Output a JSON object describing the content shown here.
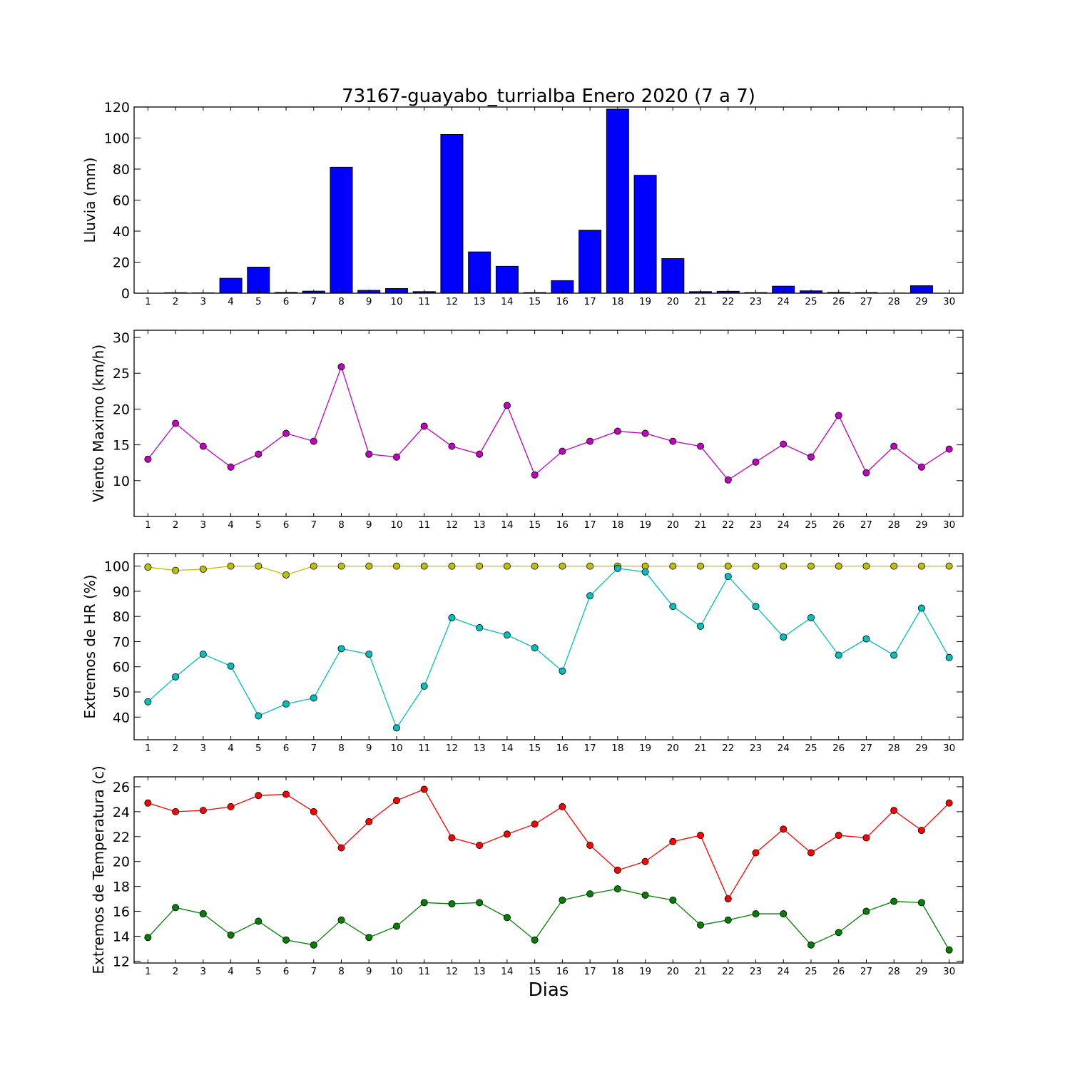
{
  "figure": {
    "title": "73167-guayabo_turrialba Enero 2020  (7 a 7)",
    "xlabel": "Dias"
  },
  "chart_data": [
    {
      "type": "bar",
      "ylabel": "Lluvia (mm)",
      "x": [
        1,
        2,
        3,
        4,
        5,
        6,
        7,
        8,
        9,
        10,
        11,
        12,
        13,
        14,
        15,
        16,
        17,
        18,
        19,
        20,
        21,
        22,
        23,
        24,
        25,
        26,
        27,
        28,
        29,
        30
      ],
      "xlim": [
        0.5,
        30.5
      ],
      "ylim": [
        0,
        120
      ],
      "yticks": [
        0,
        20,
        40,
        60,
        80,
        100,
        120
      ],
      "series": [
        {
          "color": "#0000ff",
          "values": [
            0,
            0.3,
            0.2,
            9.6,
            16.8,
            0.5,
            1.3,
            81.2,
            1.8,
            3.0,
            1.0,
            102.3,
            26.6,
            17.3,
            0.4,
            8.1,
            40.6,
            118.6,
            76.0,
            22.3,
            1.0,
            1.2,
            0.4,
            4.5,
            1.5,
            0.5,
            0.4,
            0.1,
            4.8,
            0
          ]
        }
      ]
    },
    {
      "type": "line",
      "ylabel": "Viento Maximo (km/h)",
      "x": [
        1,
        2,
        3,
        4,
        5,
        6,
        7,
        8,
        9,
        10,
        11,
        12,
        13,
        14,
        15,
        16,
        17,
        18,
        19,
        20,
        21,
        22,
        23,
        24,
        25,
        26,
        27,
        28,
        29,
        30
      ],
      "xlim": [
        0.5,
        30.5
      ],
      "ylim": [
        5,
        31
      ],
      "yticks": [
        10,
        15,
        20,
        25,
        30
      ],
      "series": [
        {
          "color": "#bf00bf",
          "values": [
            13.0,
            18.0,
            14.8,
            11.9,
            13.7,
            16.6,
            15.5,
            25.9,
            13.7,
            13.3,
            17.6,
            14.8,
            13.7,
            20.5,
            10.8,
            14.1,
            15.5,
            16.9,
            16.6,
            15.5,
            14.8,
            10.1,
            12.6,
            15.1,
            13.3,
            19.1,
            11.1,
            14.8,
            11.9,
            14.4
          ]
        }
      ]
    },
    {
      "type": "line",
      "ylabel": "Extremos de HR (%)",
      "x": [
        1,
        2,
        3,
        4,
        5,
        6,
        7,
        8,
        9,
        10,
        11,
        12,
        13,
        14,
        15,
        16,
        17,
        18,
        19,
        20,
        21,
        22,
        23,
        24,
        25,
        26,
        27,
        28,
        29,
        30
      ],
      "xlim": [
        0.5,
        30.5
      ],
      "ylim": [
        31,
        105
      ],
      "yticks": [
        40,
        50,
        60,
        70,
        80,
        90,
        100
      ],
      "series": [
        {
          "color": "#bfbf00",
          "values": [
            99.6,
            98.3,
            98.8,
            100,
            100,
            96.5,
            100,
            100,
            100,
            100,
            100,
            100,
            100,
            100,
            100,
            100,
            100,
            100,
            100,
            100,
            100,
            100,
            100,
            100,
            100,
            100,
            100,
            100,
            100,
            100
          ]
        },
        {
          "color": "#00bfbf",
          "values": [
            46.1,
            56.0,
            65.0,
            60.3,
            40.5,
            45.2,
            47.6,
            67.2,
            65.0,
            35.7,
            52.3,
            79.5,
            75.5,
            72.6,
            67.5,
            58.3,
            88.2,
            99.1,
            97.7,
            84.0,
            76.1,
            95.9,
            84.0,
            71.8,
            79.5,
            64.6,
            71.1,
            64.6,
            83.3,
            63.7
          ]
        }
      ]
    },
    {
      "type": "line",
      "ylabel": "Extremos de Temperatura (c)",
      "x": [
        1,
        2,
        3,
        4,
        5,
        6,
        7,
        8,
        9,
        10,
        11,
        12,
        13,
        14,
        15,
        16,
        17,
        18,
        19,
        20,
        21,
        22,
        23,
        24,
        25,
        26,
        27,
        28,
        29,
        30
      ],
      "xlim": [
        0.5,
        30.5
      ],
      "ylim": [
        11.85,
        26.8
      ],
      "yticks": [
        12,
        14,
        16,
        18,
        20,
        22,
        24,
        26
      ],
      "series": [
        {
          "color": "#ff0000",
          "values": [
            24.7,
            24.0,
            24.1,
            24.4,
            25.3,
            25.4,
            24.0,
            21.1,
            23.2,
            24.9,
            25.8,
            21.9,
            21.3,
            22.2,
            23.0,
            24.4,
            21.3,
            19.3,
            20.0,
            21.6,
            22.1,
            17.0,
            20.7,
            22.6,
            20.7,
            22.1,
            21.9,
            24.1,
            22.5,
            24.7
          ]
        },
        {
          "color": "#007f00",
          "values": [
            13.9,
            16.3,
            15.8,
            14.1,
            15.2,
            13.7,
            13.3,
            15.3,
            13.9,
            14.8,
            16.7,
            16.6,
            16.7,
            15.5,
            13.7,
            16.9,
            17.4,
            17.8,
            17.3,
            16.9,
            14.9,
            15.3,
            15.8,
            15.8,
            13.3,
            14.3,
            16.0,
            16.8,
            16.7,
            12.9
          ]
        }
      ]
    }
  ]
}
